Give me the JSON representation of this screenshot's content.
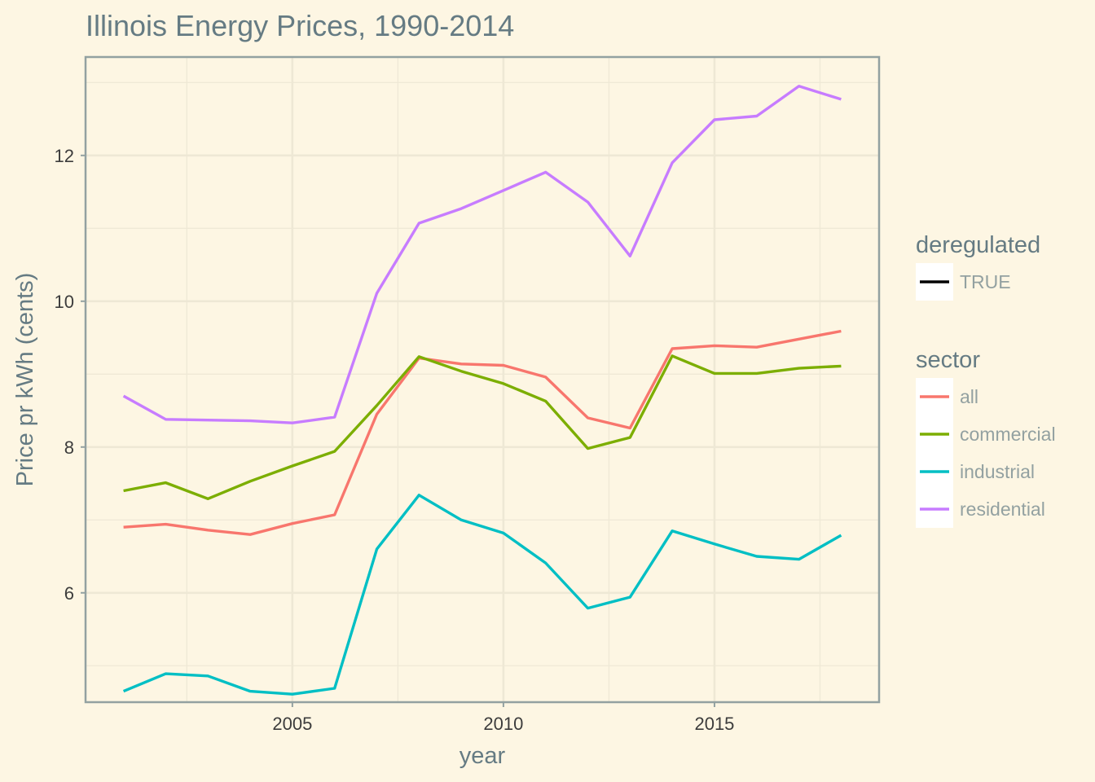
{
  "chart_data": {
    "type": "line",
    "title": "Illinois Energy Prices, 1990-2014",
    "xlabel": "year",
    "ylabel": "Price pr kWh (cents)",
    "xlim": [
      2000.1,
      2018.9
    ],
    "ylim": [
      4.5,
      13.35
    ],
    "x_ticks": [
      2005,
      2010,
      2015
    ],
    "y_ticks": [
      6,
      8,
      10,
      12
    ],
    "grid": true,
    "legend_placement": "right",
    "legend_groups": [
      {
        "title": "deregulated",
        "entries": [
          {
            "label": "TRUE",
            "color": "#000000"
          }
        ]
      },
      {
        "title": "sector",
        "entries": [
          {
            "label": "all",
            "color": "#f8766d"
          },
          {
            "label": "commercial",
            "color": "#7cae00"
          },
          {
            "label": "industrial",
            "color": "#00bfc4"
          },
          {
            "label": "residential",
            "color": "#c77cff"
          }
        ]
      }
    ],
    "x": [
      2001,
      2002,
      2003,
      2004,
      2005,
      2006,
      2007,
      2008,
      2009,
      2010,
      2011,
      2012,
      2013,
      2014,
      2015,
      2016,
      2017,
      2018
    ],
    "series": [
      {
        "name": "all",
        "color": "#f8766d",
        "values": [
          6.9,
          6.94,
          6.86,
          6.8,
          6.95,
          7.07,
          8.45,
          9.22,
          9.14,
          9.12,
          8.96,
          8.4,
          8.26,
          9.35,
          9.39,
          9.37,
          9.48,
          9.59
        ]
      },
      {
        "name": "commercial",
        "color": "#7cae00",
        "values": [
          7.4,
          7.51,
          7.29,
          7.53,
          7.74,
          7.94,
          8.57,
          9.24,
          9.04,
          8.87,
          8.63,
          7.98,
          8.13,
          9.25,
          9.01,
          9.01,
          9.08,
          9.11
        ]
      },
      {
        "name": "industrial",
        "color": "#00bfc4",
        "values": [
          4.65,
          4.89,
          4.86,
          4.65,
          4.61,
          4.69,
          6.6,
          7.34,
          7.0,
          6.82,
          6.41,
          5.79,
          5.94,
          6.85,
          6.67,
          6.5,
          6.46,
          6.79
        ]
      },
      {
        "name": "residential",
        "color": "#c77cff",
        "values": [
          8.7,
          8.38,
          8.37,
          8.36,
          8.33,
          8.41,
          10.11,
          11.07,
          11.27,
          11.52,
          11.77,
          11.36,
          10.62,
          11.9,
          12.49,
          12.54,
          12.95,
          12.77
        ]
      }
    ]
  }
}
